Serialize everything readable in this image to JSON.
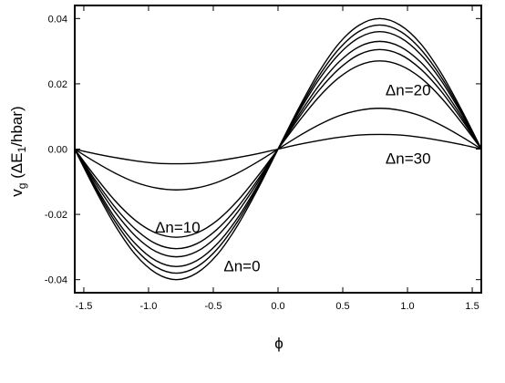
{
  "chart_data": {
    "type": "line",
    "title": "",
    "xlabel": "ϕ",
    "ylabel_parts": {
      "base": "v",
      "sub": "g",
      "open": " (ΔE",
      "sub2": "1",
      "close": "/hbar)"
    },
    "xlim": [
      -1.57,
      1.57
    ],
    "ylim": [
      -0.044,
      0.044
    ],
    "xticks": [
      -1.5,
      -1.0,
      -0.5,
      0.0,
      0.5,
      1.0,
      1.5
    ],
    "xtick_labels": [
      "-1.5",
      "-1.0",
      "-0.5",
      "0.0",
      "0.5",
      "1.0",
      "1.5"
    ],
    "yticks": [
      -0.04,
      -0.02,
      0.0,
      0.02,
      0.04
    ],
    "ytick_labels": [
      "-0.04",
      "-0.02",
      "0.00",
      "0.02",
      "0.04"
    ],
    "grid": false,
    "x": [
      -1.5708,
      -1.4137,
      -1.2566,
      -1.0996,
      -0.9425,
      -0.7854,
      -0.6283,
      -0.4712,
      -0.3142,
      -0.1571,
      0.0,
      0.1571,
      0.3142,
      0.4712,
      0.6283,
      0.7854,
      0.9425,
      1.0996,
      1.2566,
      1.4137,
      1.5708
    ],
    "series": [
      {
        "values": [
          0.0,
          -0.0123,
          -0.0235,
          -0.0324,
          -0.038,
          -0.04,
          -0.038,
          -0.0324,
          -0.0235,
          -0.0123,
          0.0,
          0.0123,
          0.0235,
          0.0324,
          0.038,
          0.04,
          0.038,
          0.0324,
          0.0235,
          0.0123,
          0.0
        ]
      },
      {
        "values": [
          0.0,
          -0.0117,
          -0.0223,
          -0.0307,
          -0.0361,
          -0.038,
          -0.0361,
          -0.0307,
          -0.0223,
          -0.0117,
          0.0,
          0.0117,
          0.0223,
          0.0307,
          0.0361,
          0.038,
          0.0361,
          0.0307,
          0.0223,
          0.0117,
          0.0
        ]
      },
      {
        "values": [
          0.0,
          -0.0111,
          -0.0212,
          -0.0291,
          -0.0342,
          -0.036,
          -0.0342,
          -0.0291,
          -0.0212,
          -0.0111,
          0.0,
          0.0111,
          0.0212,
          0.0291,
          0.0342,
          0.036,
          0.0342,
          0.0291,
          0.0212,
          0.0111,
          0.0
        ]
      },
      {
        "values": [
          0.0,
          -0.0102,
          -0.0194,
          -0.0267,
          -0.0314,
          -0.033,
          -0.0314,
          -0.0267,
          -0.0194,
          -0.0102,
          0.0,
          0.0102,
          0.0194,
          0.0267,
          0.0314,
          0.033,
          0.0314,
          0.0267,
          0.0194,
          0.0102,
          0.0
        ]
      },
      {
        "values": [
          0.0,
          -0.0094,
          -0.0179,
          -0.0246,
          -0.029,
          -0.0305,
          -0.029,
          -0.0246,
          -0.0179,
          -0.0094,
          0.0,
          0.0094,
          0.0179,
          0.0246,
          0.029,
          0.0305,
          0.029,
          0.0246,
          0.0179,
          0.0094,
          0.0
        ]
      },
      {
        "values": [
          0.0,
          -0.0083,
          -0.0159,
          -0.0219,
          -0.0257,
          -0.027,
          -0.0257,
          -0.0219,
          -0.0159,
          -0.0083,
          0.0,
          0.0083,
          0.0159,
          0.0219,
          0.0257,
          0.027,
          0.0257,
          0.0219,
          0.0159,
          0.0083,
          0.0
        ]
      },
      {
        "values": [
          0.0,
          -0.0039,
          -0.0074,
          -0.0102,
          -0.0119,
          -0.0125,
          -0.0119,
          -0.0102,
          -0.0074,
          -0.0039,
          0.0,
          0.0039,
          0.0074,
          0.0102,
          0.0119,
          0.0125,
          0.0119,
          0.0102,
          0.0074,
          0.0039,
          0.0
        ]
      },
      {
        "values": [
          0.0,
          -0.0014,
          -0.0026,
          -0.0036,
          -0.0043,
          -0.0045,
          -0.0043,
          -0.0036,
          -0.0026,
          -0.0014,
          0.0,
          0.0014,
          0.0026,
          0.0036,
          0.0043,
          0.0045,
          0.0043,
          0.0036,
          0.0026,
          0.0014,
          0.0
        ]
      }
    ],
    "annotations": [
      {
        "text": "Δn=0",
        "x": -0.42,
        "y": -0.0375
      },
      {
        "text": "Δn=10",
        "x": -0.95,
        "y": -0.0255
      },
      {
        "text": "Δn=20",
        "x": 0.83,
        "y": 0.0165
      },
      {
        "text": "Δn=30",
        "x": 0.83,
        "y": -0.0045
      }
    ]
  }
}
